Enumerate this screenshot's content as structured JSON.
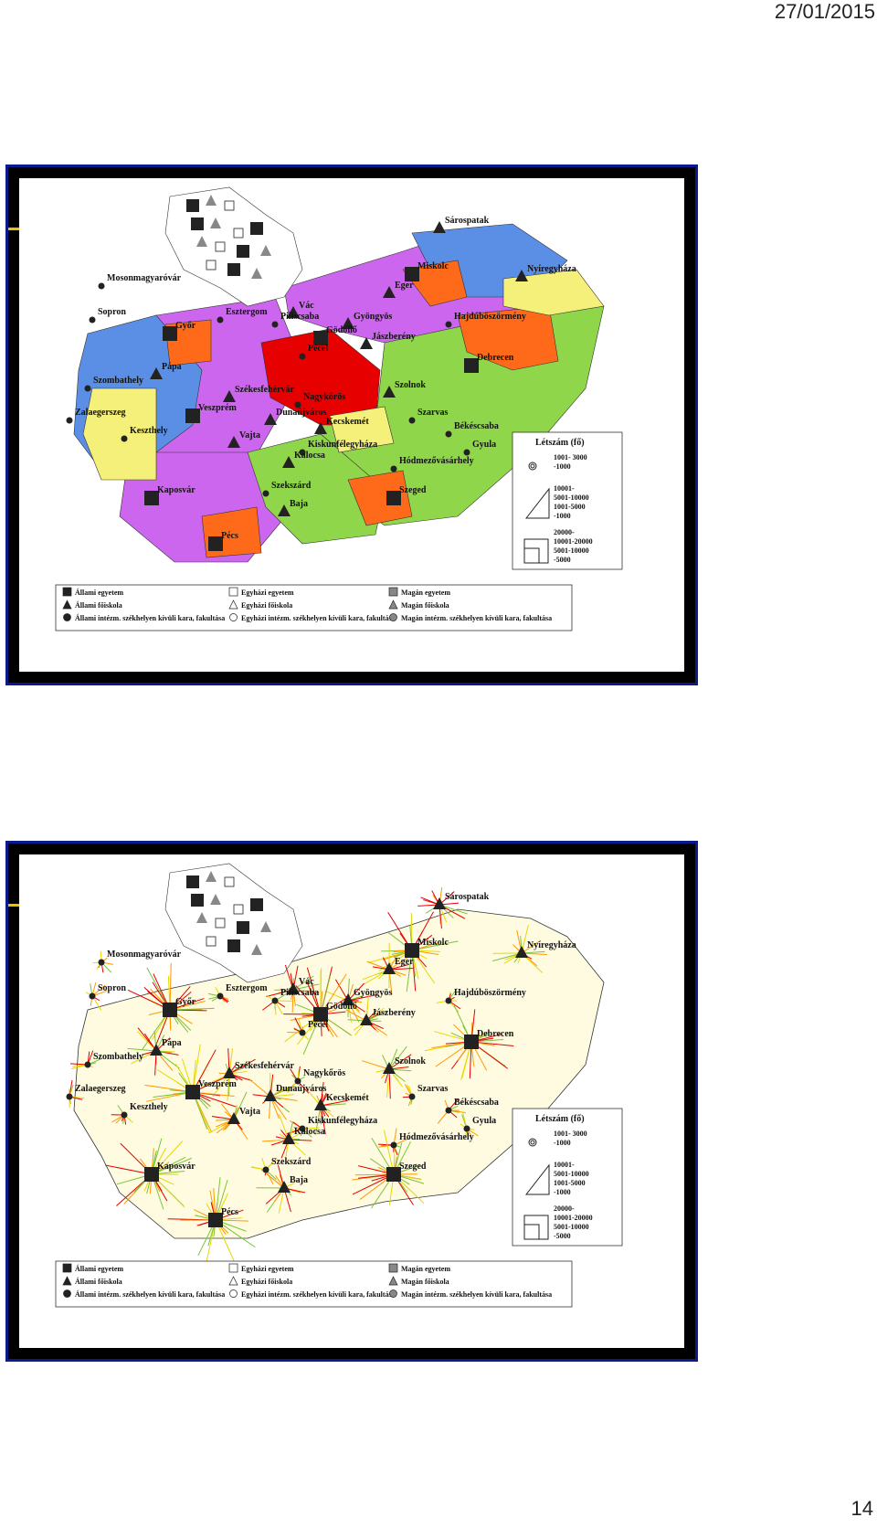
{
  "header": {
    "date": "27/01/2015"
  },
  "footer": {
    "page_number": "14"
  },
  "cities": [
    "Sárospatak",
    "Miskolc",
    "Nyíregyháza",
    "Eger",
    "Mosonmagyaróvár",
    "Sopron",
    "Győr",
    "Esztergom",
    "Vác",
    "Piliscsaba",
    "Gyöngyös",
    "Gödöllő",
    "Hajdúböszörmény",
    "Jászberény",
    "Pécel",
    "Debrecen",
    "Pápa",
    "Szombathely",
    "Székesfehérvár",
    "Szolnok",
    "Nagykőrös",
    "Veszprém",
    "Zalaegerszeg",
    "Dunaújváros",
    "Kecskemét",
    "Szarvas",
    "Békéscsaba",
    "Keszthely",
    "Vajta",
    "Kiskunfélegyháza",
    "Gyula",
    "Kalocsa",
    "Hódmezővásárhely",
    "Szekszárd",
    "Szeged",
    "Kaposvár",
    "Baja",
    "Pécs"
  ],
  "legend": {
    "row1": [
      "Állami egyetem",
      "Egyházi egyetem",
      "Magán egyetem"
    ],
    "row2": [
      "Állami főiskola",
      "Egyházi főiskola",
      "Magán főiskola"
    ],
    "row3": [
      "Állami intézm. székhelyen kívüli kara, fakultása",
      "Egyházi intézm. székhelyen kívüli kara, fakultása",
      "Magán intézm. székhelyen kívüli kara, fakultása"
    ]
  },
  "size_legend": {
    "title": "Létszám (fő)",
    "circle": [
      "1001- 3000",
      "-1000"
    ],
    "triangle": [
      "10001-",
      "5001-10000",
      "1001-5000",
      "-1000"
    ],
    "square": [
      "20000-",
      "10001-20000",
      "5001-10000",
      "-5000"
    ]
  },
  "colors": {
    "slide_border": "#0a1a8a",
    "purple": "#cc66ee",
    "blue": "#5b8fe6",
    "yellow": "#f5f07a",
    "green": "#8fd64a",
    "orange": "#ff6a1a",
    "red": "#e60000"
  }
}
